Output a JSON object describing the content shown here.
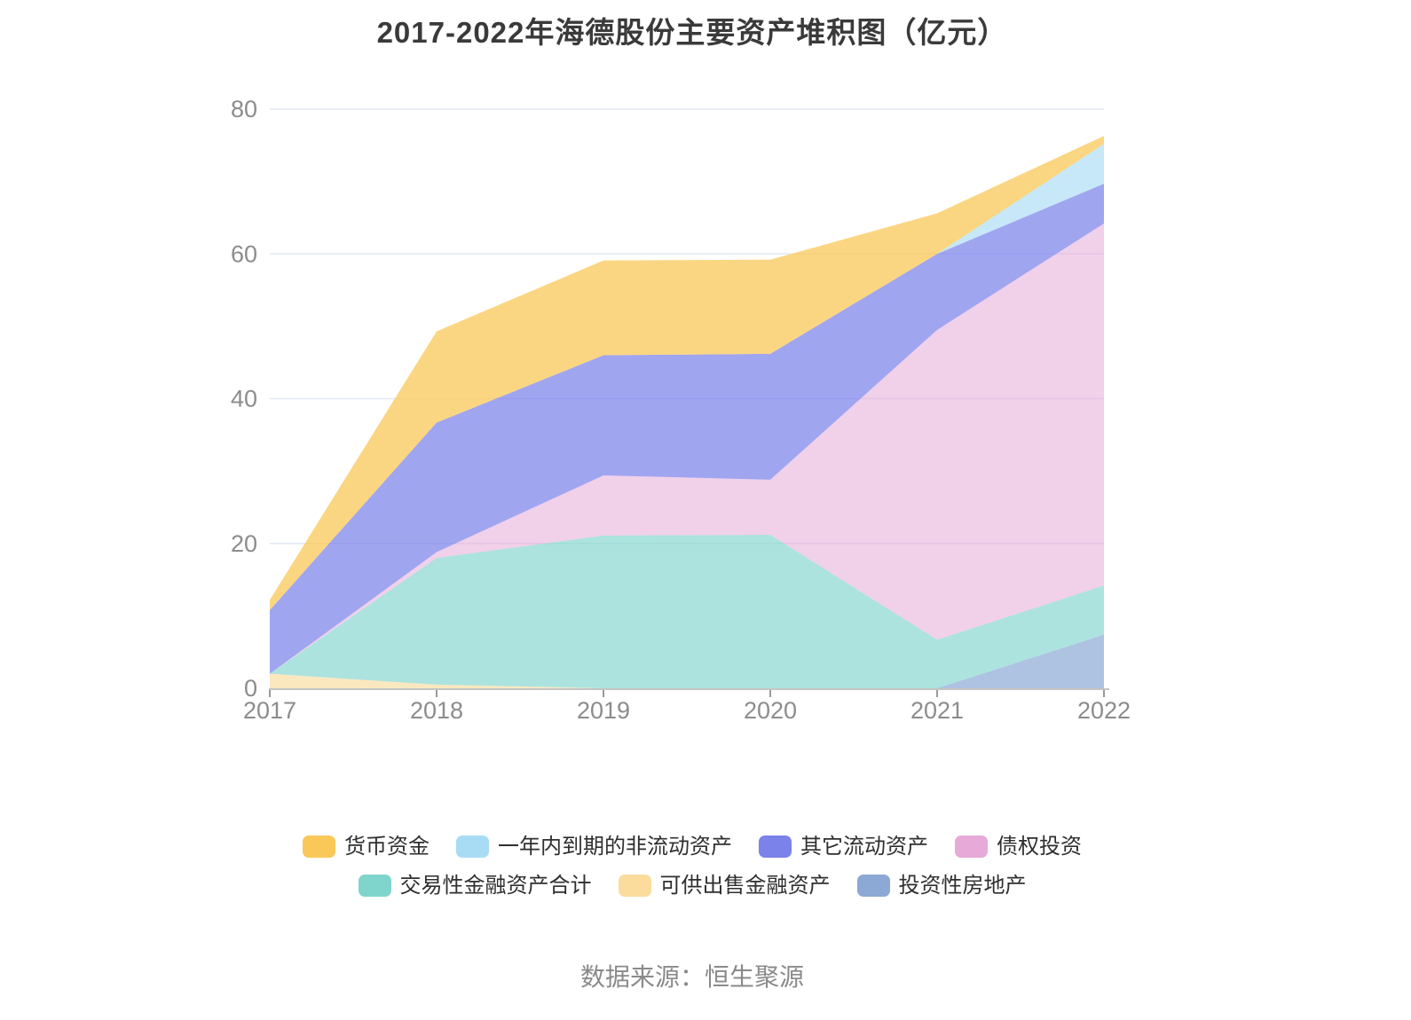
{
  "title": "2017-2022年海德股份主要资产堆积图（亿元）",
  "source": "数据来源：恒生聚源",
  "chart_data": {
    "type": "area",
    "stacked": true,
    "title": "2017-2022年海德股份主要资产堆积图（亿元）",
    "unit": "亿元",
    "x": [
      "2017",
      "2018",
      "2019",
      "2020",
      "2021",
      "2022"
    ],
    "xlabel": "",
    "ylabel": "",
    "ylim": [
      0,
      80
    ],
    "yticks": [
      0,
      20,
      40,
      60,
      80
    ],
    "grid": true,
    "legend_position": "bottom",
    "legend_rows": [
      [
        "货币资金",
        "一年内到期的非流动资产",
        "其它流动资产",
        "债权投资"
      ],
      [
        "交易性金融资产合计",
        "可供出售金融资产",
        "投资性房地产"
      ]
    ],
    "stack_order_bottom_to_top": [
      "投资性房地产",
      "可供出售金融资产",
      "交易性金融资产合计",
      "债权投资",
      "其它流动资产",
      "一年内到期的非流动资产",
      "货币资金"
    ],
    "series": [
      {
        "name": "货币资金",
        "color": "#FAC858",
        "fill": "rgba(250,200,88,0.75)",
        "values": [
          1.4,
          12.6,
          13.1,
          13.0,
          5.6,
          1.1
        ]
      },
      {
        "name": "一年内到期的非流动资产",
        "color": "#A8DCF5",
        "fill": "rgba(168,220,245,0.65)",
        "values": [
          0,
          0,
          0,
          0,
          0,
          5.5
        ]
      },
      {
        "name": "其它流动资产",
        "color": "#7B82EA",
        "fill": "rgba(123,130,234,0.72)",
        "values": [
          8.8,
          17.9,
          16.6,
          17.4,
          10.5,
          5.5
        ]
      },
      {
        "name": "债权投资",
        "color": "#E6A9D8",
        "fill": "rgba(230,169,216,0.55)",
        "values": [
          0,
          0.8,
          8.3,
          7.6,
          42.8,
          50.0
        ]
      },
      {
        "name": "交易性金融资产合计",
        "color": "#7FD4CC",
        "fill": "rgba(127,212,204,0.65)",
        "values": [
          0,
          17.5,
          21.1,
          21.2,
          6.7,
          6.8
        ]
      },
      {
        "name": "可供出售金融资产",
        "color": "#FBDC9D",
        "fill": "rgba(251,220,157,0.65)",
        "values": [
          2.0,
          0.5,
          0,
          0,
          0,
          0
        ]
      },
      {
        "name": "投资性房地产",
        "color": "#8CA8D5",
        "fill": "rgba(140,168,213,0.70)",
        "values": [
          0,
          0,
          0,
          0,
          0,
          7.4
        ]
      }
    ],
    "totals": [
      12.2,
      49.3,
      59.1,
      59.2,
      65.6,
      76.3
    ],
    "colors": {
      "grid": "#E2E7F3",
      "axis": "#C4C4C4",
      "tick": "#9A9A9A",
      "axis_label": "#8C8C8C",
      "title": "#3A3A3A",
      "legend_text": "#2F2F2F",
      "source_text": "#8A8A8A"
    }
  }
}
